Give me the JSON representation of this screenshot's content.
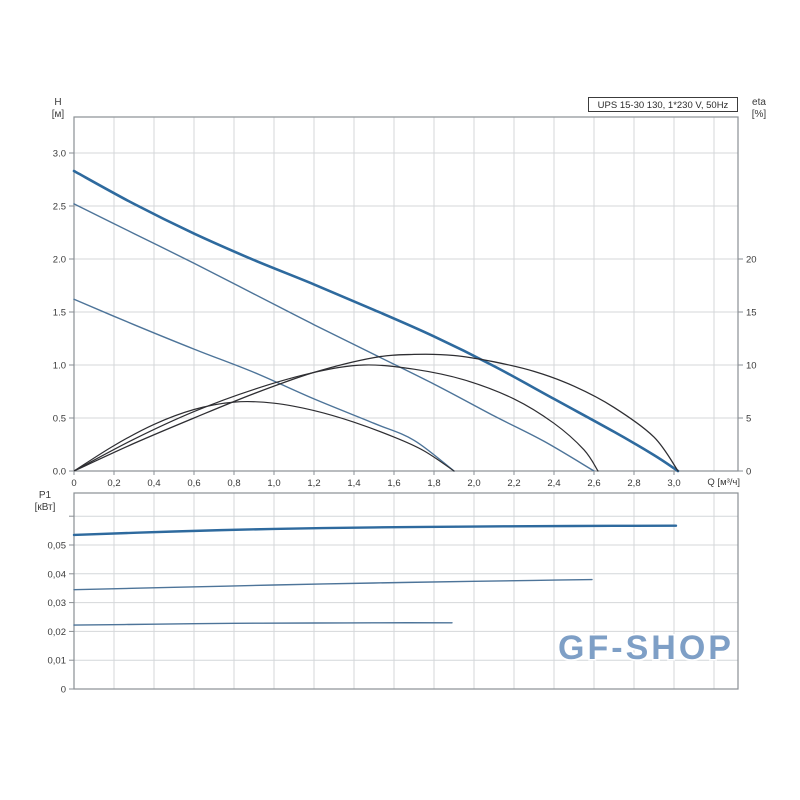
{
  "page": {
    "background": "#ffffff"
  },
  "title_box": {
    "text": "UPS 15-30 130, 1*230 V, 50Hz"
  },
  "axis_labels": {
    "head": "H",
    "head_unit": "[м]",
    "eta": "eta",
    "eta_unit": "[%]",
    "flow": "Q [м³/ч]",
    "power": "P1",
    "power_unit": "[кВт]"
  },
  "watermark": {
    "text": "GF-SHOP",
    "color": "#7e9fc6"
  },
  "colors": {
    "curve_main": "#2e6a9e",
    "curve_thin": "#4d7499",
    "eta_curve": "#2e2e32",
    "grid": "#d4d7da",
    "frame": "#8a8f94",
    "tick_text": "#3a3a3a"
  },
  "chart_data": [
    {
      "type": "line",
      "name": "hq-eta-chart",
      "title": "UPS 15-30 130, 1*230 V, 50Hz",
      "xlabel": "Q [м³/ч]",
      "ylabel_left": "H [м]",
      "ylabel_right": "eta [%]",
      "xlim": [
        0,
        3.32
      ],
      "ylim_left": [
        0,
        3.34
      ],
      "ylim_right": [
        0,
        33.4
      ],
      "grid": true,
      "x_ticks": [
        {
          "v": 0,
          "label": "0"
        },
        {
          "v": 0.2,
          "label": "0,2"
        },
        {
          "v": 0.4,
          "label": "0,4"
        },
        {
          "v": 0.6,
          "label": "0,6"
        },
        {
          "v": 0.8,
          "label": "0,8"
        },
        {
          "v": 1.0,
          "label": "1,0"
        },
        {
          "v": 1.2,
          "label": "1,2"
        },
        {
          "v": 1.4,
          "label": "1,4"
        },
        {
          "v": 1.6,
          "label": "1,6"
        },
        {
          "v": 1.8,
          "label": "1,8"
        },
        {
          "v": 2.0,
          "label": "2,0"
        },
        {
          "v": 2.2,
          "label": "2,2"
        },
        {
          "v": 2.4,
          "label": "2,4"
        },
        {
          "v": 2.6,
          "label": "2,6"
        },
        {
          "v": 2.8,
          "label": "2,8"
        },
        {
          "v": 3.0,
          "label": "3,0"
        }
      ],
      "y_ticks_left": [
        {
          "v": 0.0,
          "label": "0.0"
        },
        {
          "v": 0.5,
          "label": "0.5"
        },
        {
          "v": 1.0,
          "label": "1.0"
        },
        {
          "v": 1.5,
          "label": "1.5"
        },
        {
          "v": 2.0,
          "label": "2.0"
        },
        {
          "v": 2.5,
          "label": "2.5"
        },
        {
          "v": 3.0,
          "label": "3.0"
        }
      ],
      "y_ticks_right": [
        {
          "v": 0,
          "label": "0"
        },
        {
          "v": 5,
          "label": "5"
        },
        {
          "v": 10,
          "label": "10"
        },
        {
          "v": 15,
          "label": "15"
        },
        {
          "v": 20,
          "label": "20"
        }
      ],
      "x_grid": [
        0.2,
        0.4,
        0.6,
        0.8,
        1.0,
        1.2,
        1.4,
        1.6,
        1.8,
        2.0,
        2.2,
        2.4,
        2.6,
        2.8,
        3.0,
        3.2
      ],
      "y_grid": [
        0.5,
        1.0,
        1.5,
        2.0,
        2.5,
        3.0
      ],
      "series": [
        {
          "name": "head-curve-speed-3",
          "axis": "left",
          "color_key": "curve_main",
          "width": 2.6,
          "points": [
            [
              0,
              2.83
            ],
            [
              0.3,
              2.52
            ],
            [
              0.6,
              2.24
            ],
            [
              0.9,
              1.99
            ],
            [
              1.2,
              1.76
            ],
            [
              1.5,
              1.52
            ],
            [
              1.8,
              1.27
            ],
            [
              2.1,
              0.99
            ],
            [
              2.4,
              0.68
            ],
            [
              2.7,
              0.37
            ],
            [
              2.9,
              0.15
            ],
            [
              3.02,
              0
            ]
          ]
        },
        {
          "name": "head-curve-speed-2",
          "axis": "left",
          "color_key": "curve_thin",
          "width": 1.4,
          "points": [
            [
              0,
              2.52
            ],
            [
              0.3,
              2.24
            ],
            [
              0.6,
              1.96
            ],
            [
              0.9,
              1.67
            ],
            [
              1.2,
              1.38
            ],
            [
              1.5,
              1.1
            ],
            [
              1.8,
              0.82
            ],
            [
              2.1,
              0.52
            ],
            [
              2.35,
              0.28
            ],
            [
              2.6,
              0
            ]
          ]
        },
        {
          "name": "head-curve-speed-1",
          "axis": "left",
          "color_key": "curve_thin",
          "width": 1.4,
          "points": [
            [
              0,
              1.62
            ],
            [
              0.3,
              1.38
            ],
            [
              0.6,
              1.15
            ],
            [
              0.9,
              0.93
            ],
            [
              1.2,
              0.68
            ],
            [
              1.5,
              0.45
            ],
            [
              1.7,
              0.29
            ],
            [
              1.9,
              0
            ]
          ]
        },
        {
          "name": "eta-curve-speed-3",
          "axis": "right",
          "color_key": "eta_curve",
          "width": 1.3,
          "points": [
            [
              0,
              0
            ],
            [
              0.3,
              2.6
            ],
            [
              0.6,
              5.0
            ],
            [
              0.9,
              7.3
            ],
            [
              1.2,
              9.3
            ],
            [
              1.5,
              10.7
            ],
            [
              1.7,
              11.0
            ],
            [
              1.9,
              10.9
            ],
            [
              2.1,
              10.3
            ],
            [
              2.3,
              9.4
            ],
            [
              2.5,
              8.0
            ],
            [
              2.7,
              6.0
            ],
            [
              2.9,
              3.2
            ],
            [
              3.02,
              0
            ]
          ]
        },
        {
          "name": "eta-curve-speed-2",
          "axis": "right",
          "color_key": "eta_curve",
          "width": 1.2,
          "points": [
            [
              0,
              0
            ],
            [
              0.3,
              3.0
            ],
            [
              0.6,
              5.6
            ],
            [
              0.9,
              7.7
            ],
            [
              1.2,
              9.3
            ],
            [
              1.45,
              10.0
            ],
            [
              1.7,
              9.6
            ],
            [
              1.95,
              8.6
            ],
            [
              2.2,
              6.8
            ],
            [
              2.4,
              4.5
            ],
            [
              2.55,
              2.0
            ],
            [
              2.62,
              0
            ]
          ]
        },
        {
          "name": "eta-curve-speed-1",
          "axis": "right",
          "color_key": "eta_curve",
          "width": 1.2,
          "points": [
            [
              0,
              0
            ],
            [
              0.2,
              2.4
            ],
            [
              0.4,
              4.4
            ],
            [
              0.6,
              5.8
            ],
            [
              0.8,
              6.5
            ],
            [
              1.0,
              6.4
            ],
            [
              1.2,
              5.7
            ],
            [
              1.4,
              4.6
            ],
            [
              1.6,
              3.2
            ],
            [
              1.75,
              1.9
            ],
            [
              1.9,
              0
            ]
          ]
        }
      ]
    },
    {
      "type": "line",
      "name": "p1-chart",
      "title": "",
      "xlabel": "",
      "ylabel_left": "P1 [кВт]",
      "xlim": [
        0,
        3.32
      ],
      "ylim_left": [
        0,
        0.068
      ],
      "grid": true,
      "x_ticks": [],
      "y_ticks_left": [
        {
          "v": 0,
          "label": "0"
        },
        {
          "v": 0.01,
          "label": "0,01"
        },
        {
          "v": 0.02,
          "label": "0,02"
        },
        {
          "v": 0.03,
          "label": "0,03"
        },
        {
          "v": 0.04,
          "label": "0,04"
        },
        {
          "v": 0.05,
          "label": "0,05"
        },
        {
          "v": 0.06,
          "label": ""
        }
      ],
      "x_grid": [
        0.2,
        0.4,
        0.6,
        0.8,
        1.0,
        1.2,
        1.4,
        1.6,
        1.8,
        2.0,
        2.2,
        2.4,
        2.6,
        2.8,
        3.0,
        3.2
      ],
      "y_grid": [
        0.01,
        0.02,
        0.03,
        0.04,
        0.05,
        0.06
      ],
      "series": [
        {
          "name": "power-curve-speed-3",
          "axis": "left",
          "color_key": "curve_main",
          "width": 2.4,
          "points": [
            [
              0,
              0.0535
            ],
            [
              0.5,
              0.0547
            ],
            [
              1.0,
              0.0556
            ],
            [
              1.5,
              0.0561
            ],
            [
              2.0,
              0.0564
            ],
            [
              2.5,
              0.0566
            ],
            [
              3.01,
              0.0567
            ]
          ]
        },
        {
          "name": "power-curve-speed-2",
          "axis": "left",
          "color_key": "curve_thin",
          "width": 1.4,
          "points": [
            [
              0,
              0.0345
            ],
            [
              0.5,
              0.0353
            ],
            [
              1.0,
              0.0361
            ],
            [
              1.5,
              0.0368
            ],
            [
              2.0,
              0.0374
            ],
            [
              2.3,
              0.0377
            ],
            [
              2.59,
              0.038
            ]
          ]
        },
        {
          "name": "power-curve-speed-1",
          "axis": "left",
          "color_key": "curve_thin",
          "width": 1.4,
          "points": [
            [
              0,
              0.0222
            ],
            [
              0.4,
              0.0225
            ],
            [
              0.8,
              0.0228
            ],
            [
              1.2,
              0.0229
            ],
            [
              1.5,
              0.023
            ],
            [
              1.89,
              0.023
            ]
          ]
        }
      ]
    }
  ]
}
